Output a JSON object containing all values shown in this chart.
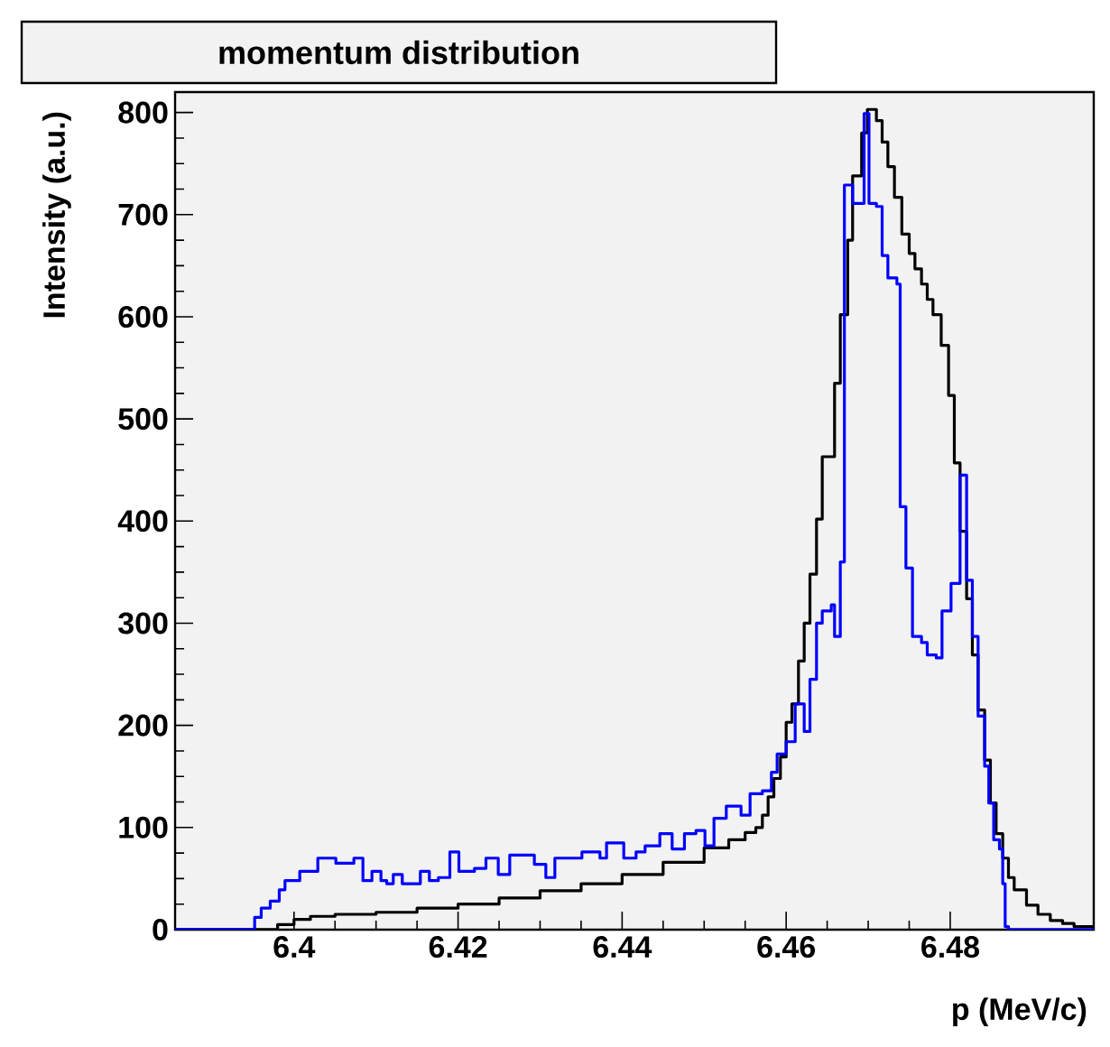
{
  "chart_data": {
    "type": "step",
    "title": "momentum distribution",
    "xlabel": "p (MeV/c)",
    "ylabel": "Intensity (a.u.)",
    "xlim": [
      6.3855,
      6.4975
    ],
    "ylim": [
      0,
      820
    ],
    "xticks": [
      6.4,
      6.42,
      6.44,
      6.46,
      6.48
    ],
    "yticks": [
      0,
      100,
      200,
      300,
      400,
      500,
      600,
      700,
      800
    ],
    "grid": false,
    "legend": false,
    "marker": "none",
    "line_style": "solid",
    "series": [
      {
        "color": "#000000",
        "x": [
          6.3855,
          6.396,
          6.398,
          6.4,
          6.402,
          6.405,
          6.41,
          6.415,
          6.42,
          6.425,
          6.43,
          6.435,
          6.44,
          6.445,
          6.45,
          6.453,
          6.455,
          6.4563,
          6.4571,
          6.4578,
          6.4585,
          6.4593,
          6.46,
          6.4607,
          6.4615,
          6.4622,
          6.4629,
          6.4637,
          6.4644,
          6.4659,
          6.4666,
          6.4675,
          6.4681,
          6.4692,
          6.4699,
          6.471,
          6.4717,
          6.4724,
          6.4732,
          6.4741,
          6.475,
          6.4757,
          6.4765,
          6.4772,
          6.4779,
          6.4789,
          6.4798,
          6.4805,
          6.4812,
          6.482,
          6.4827,
          6.4834,
          6.4842,
          6.4849,
          6.4856,
          6.4864,
          6.4871,
          6.4878,
          6.4893,
          6.4907,
          6.4922,
          6.4937,
          6.4951,
          6.4975
        ],
        "values": [
          0,
          0,
          5,
          10,
          13,
          15,
          17,
          21,
          25,
          31,
          38,
          45,
          54,
          66,
          80,
          88,
          95,
          100,
          112,
          130,
          148,
          169,
          203,
          221,
          263,
          300,
          348,
          402,
          463,
          535,
          602,
          675,
          738,
          780,
          803,
          792,
          771,
          747,
          717,
          681,
          662,
          647,
          632,
          617,
          602,
          572,
          523,
          457,
          390,
          324,
          269,
          215,
          166,
          124,
          94,
          70,
          51,
          39,
          24,
          15,
          9,
          6,
          3,
          3
        ]
      },
      {
        "color": "#0000ff",
        "x": [
          6.3855,
          6.3952,
          6.396,
          6.3971,
          6.3982,
          6.3989,
          6.4007,
          6.4029,
          6.4051,
          6.4073,
          6.4084,
          6.4095,
          6.4106,
          6.4113,
          6.4121,
          6.4132,
          6.4154,
          6.4165,
          6.4176,
          6.419,
          6.4201,
          6.422,
          6.4234,
          6.4249,
          6.4263,
          6.4293,
          6.4307,
          6.4318,
          6.4351,
          6.4373,
          6.4381,
          6.4402,
          6.4417,
          6.4428,
          6.4446,
          6.4461,
          6.4476,
          6.449,
          6.4501,
          6.4512,
          6.4527,
          6.4545,
          6.4556,
          6.4571,
          6.4582,
          6.4589,
          6.46,
          6.4611,
          6.4622,
          6.4629,
          6.4637,
          6.4644,
          6.4655,
          6.4659,
          6.4666,
          6.4671,
          6.4681,
          6.4695,
          6.4701,
          6.471,
          6.4717,
          6.4724,
          6.4735,
          6.4739,
          6.4746,
          6.4754,
          6.4765,
          6.4772,
          6.4783,
          6.479,
          6.4801,
          6.4812,
          6.482,
          6.4827,
          6.4834,
          6.4842,
          6.4847,
          6.4853,
          6.486,
          6.4864,
          6.4867,
          6.4871,
          6.4975
        ],
        "values": [
          0,
          12,
          21,
          28,
          39,
          48,
          57,
          70,
          65,
          70,
          48,
          57,
          48,
          45,
          54,
          45,
          57,
          48,
          51,
          76,
          57,
          60,
          70,
          54,
          73,
          64,
          51,
          70,
          76,
          70,
          85,
          70,
          76,
          82,
          94,
          79,
          94,
          97,
          82,
          109,
          121,
          112,
          133,
          136,
          154,
          172,
          184,
          221,
          194,
          245,
          300,
          312,
          318,
          287,
          360,
          729,
          711,
          799,
          711,
          708,
          660,
          638,
          632,
          414,
          354,
          287,
          281,
          269,
          266,
          312,
          339,
          445,
          342,
          287,
          209,
          160,
          124,
          88,
          79,
          45,
          3,
          0,
          0
        ]
      }
    ]
  }
}
